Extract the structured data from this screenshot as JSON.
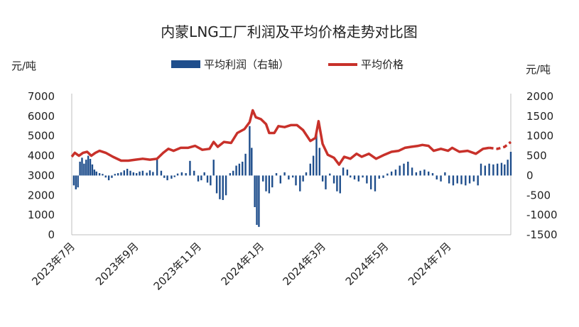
{
  "chart_data": {
    "type": "bar+line",
    "title": "内蒙LNG工厂利润及平均价格走势对比图",
    "left_axis": {
      "unit": "元/吨",
      "ylim": [
        0,
        7000
      ],
      "ticks": [
        0,
        1000,
        2000,
        3000,
        4000,
        5000,
        6000,
        7000
      ]
    },
    "right_axis": {
      "unit": "元/吨",
      "ylim": [
        -1500,
        2000
      ],
      "ticks": [
        -1500,
        -1000,
        -500,
        0,
        500,
        1000,
        1500,
        2000
      ]
    },
    "x_ticks": [
      "2023年7月",
      "2023年9月",
      "2023年11月",
      "2024年1月",
      "2024年3月",
      "2024年5月",
      "2024年7月"
    ],
    "x_tick_dates": [
      "2023-07-01",
      "2023-09-01",
      "2023-11-01",
      "2024-01-01",
      "2024-03-01",
      "2024-05-01",
      "2024-07-01"
    ],
    "x_range": [
      "2023-07-01",
      "2024-08-31"
    ],
    "legend": {
      "position": "top",
      "bar_label": "平均利润（右轴）",
      "line_label": "平均价格"
    },
    "colors": {
      "bar": "#1f4e8c",
      "line": "#c8312a",
      "axis": "#bfbfbf"
    },
    "price_series": {
      "name": "平均价格",
      "axis": "left",
      "points": [
        [
          "2023-07-01",
          3950
        ],
        [
          "2023-07-04",
          4150
        ],
        [
          "2023-07-08",
          4000
        ],
        [
          "2023-07-12",
          4150
        ],
        [
          "2023-07-16",
          4200
        ],
        [
          "2023-07-20",
          4000
        ],
        [
          "2023-07-24",
          4150
        ],
        [
          "2023-07-28",
          4250
        ],
        [
          "2023-08-03",
          4150
        ],
        [
          "2023-08-10",
          3950
        ],
        [
          "2023-08-18",
          3750
        ],
        [
          "2023-08-25",
          3750
        ],
        [
          "2023-09-01",
          3800
        ],
        [
          "2023-09-08",
          3850
        ],
        [
          "2023-09-15",
          3800
        ],
        [
          "2023-09-22",
          3850
        ],
        [
          "2023-09-28",
          4150
        ],
        [
          "2023-10-03",
          4350
        ],
        [
          "2023-10-08",
          4250
        ],
        [
          "2023-10-15",
          4400
        ],
        [
          "2023-10-22",
          4400
        ],
        [
          "2023-10-29",
          4500
        ],
        [
          "2023-11-05",
          4300
        ],
        [
          "2023-11-12",
          4350
        ],
        [
          "2023-11-16",
          4700
        ],
        [
          "2023-11-20",
          4450
        ],
        [
          "2023-11-26",
          4700
        ],
        [
          "2023-12-03",
          4650
        ],
        [
          "2023-12-09",
          5150
        ],
        [
          "2023-12-16",
          5350
        ],
        [
          "2023-12-21",
          5700
        ],
        [
          "2023-12-24",
          6300
        ],
        [
          "2023-12-27",
          5950
        ],
        [
          "2024-01-01",
          5850
        ],
        [
          "2024-01-06",
          5600
        ],
        [
          "2024-01-09",
          5150
        ],
        [
          "2024-01-14",
          5150
        ],
        [
          "2024-01-18",
          5500
        ],
        [
          "2024-01-24",
          5450
        ],
        [
          "2024-01-30",
          5550
        ],
        [
          "2024-02-05",
          5550
        ],
        [
          "2024-02-11",
          5300
        ],
        [
          "2024-02-18",
          4750
        ],
        [
          "2024-02-23",
          4900
        ],
        [
          "2024-02-26",
          5750
        ],
        [
          "2024-03-01",
          4600
        ],
        [
          "2024-03-06",
          4050
        ],
        [
          "2024-03-12",
          3900
        ],
        [
          "2024-03-17",
          3550
        ],
        [
          "2024-03-22",
          3950
        ],
        [
          "2024-03-28",
          3850
        ],
        [
          "2024-04-03",
          4100
        ],
        [
          "2024-04-08",
          3950
        ],
        [
          "2024-04-15",
          4100
        ],
        [
          "2024-04-22",
          3850
        ],
        [
          "2024-04-30",
          4050
        ],
        [
          "2024-05-07",
          4200
        ],
        [
          "2024-05-14",
          4250
        ],
        [
          "2024-05-20",
          4400
        ],
        [
          "2024-05-26",
          4450
        ],
        [
          "2024-06-02",
          4500
        ],
        [
          "2024-06-06",
          4550
        ],
        [
          "2024-06-12",
          4500
        ],
        [
          "2024-06-17",
          4250
        ],
        [
          "2024-06-24",
          4350
        ],
        [
          "2024-07-01",
          4250
        ],
        [
          "2024-07-05",
          4400
        ],
        [
          "2024-07-12",
          4200
        ],
        [
          "2024-07-20",
          4250
        ],
        [
          "2024-07-28",
          4100
        ],
        [
          "2024-08-04",
          4350
        ],
        [
          "2024-08-10",
          4400
        ],
        [
          "2024-08-16",
          4350
        ],
        [
          "2024-08-23",
          4400
        ],
        [
          "2024-08-29",
          4350
        ]
      ],
      "dashed_from": "2024-08-10",
      "dashed_points": [
        [
          "2024-08-10",
          4400
        ],
        [
          "2024-08-18",
          4350
        ],
        [
          "2024-08-25",
          4450
        ],
        [
          "2024-08-31",
          4700
        ]
      ]
    },
    "profit_series": {
      "name": "平均利润",
      "axis": "right",
      "points": [
        [
          "2023-07-03",
          -250
        ],
        [
          "2023-07-05",
          -350
        ],
        [
          "2023-07-07",
          -300
        ],
        [
          "2023-07-09",
          350
        ],
        [
          "2023-07-11",
          450
        ],
        [
          "2023-07-13",
          300
        ],
        [
          "2023-07-15",
          400
        ],
        [
          "2023-07-17",
          500
        ],
        [
          "2023-07-19",
          420
        ],
        [
          "2023-07-21",
          280
        ],
        [
          "2023-07-23",
          150
        ],
        [
          "2023-07-25",
          100
        ],
        [
          "2023-07-28",
          60
        ],
        [
          "2023-07-31",
          40
        ],
        [
          "2023-08-03",
          -50
        ],
        [
          "2023-08-06",
          -120
        ],
        [
          "2023-08-09",
          -60
        ],
        [
          "2023-08-12",
          40
        ],
        [
          "2023-08-15",
          60
        ],
        [
          "2023-08-18",
          80
        ],
        [
          "2023-08-21",
          130
        ],
        [
          "2023-08-24",
          170
        ],
        [
          "2023-08-27",
          120
        ],
        [
          "2023-08-30",
          80
        ],
        [
          "2023-09-02",
          60
        ],
        [
          "2023-09-05",
          100
        ],
        [
          "2023-09-08",
          120
        ],
        [
          "2023-09-12",
          70
        ],
        [
          "2023-09-15",
          130
        ],
        [
          "2023-09-18",
          90
        ],
        [
          "2023-09-22",
          410
        ],
        [
          "2023-09-26",
          120
        ],
        [
          "2023-09-29",
          -60
        ],
        [
          "2023-10-02",
          -120
        ],
        [
          "2023-10-06",
          -80
        ],
        [
          "2023-10-09",
          -40
        ],
        [
          "2023-10-12",
          50
        ],
        [
          "2023-10-16",
          80
        ],
        [
          "2023-10-20",
          60
        ],
        [
          "2023-10-24",
          370
        ],
        [
          "2023-10-28",
          120
        ],
        [
          "2023-11-01",
          -150
        ],
        [
          "2023-11-04",
          -120
        ],
        [
          "2023-11-07",
          80
        ],
        [
          "2023-11-10",
          -180
        ],
        [
          "2023-11-13",
          -250
        ],
        [
          "2023-11-16",
          400
        ],
        [
          "2023-11-19",
          -450
        ],
        [
          "2023-11-22",
          -600
        ],
        [
          "2023-11-25",
          -620
        ],
        [
          "2023-11-28",
          -500
        ],
        [
          "2023-12-02",
          60
        ],
        [
          "2023-12-05",
          120
        ],
        [
          "2023-12-08",
          250
        ],
        [
          "2023-12-11",
          300
        ],
        [
          "2023-12-14",
          350
        ],
        [
          "2023-12-17",
          550
        ],
        [
          "2023-12-21",
          1250
        ],
        [
          "2023-12-23",
          700
        ],
        [
          "2023-12-26",
          -800
        ],
        [
          "2023-12-28",
          -1250
        ],
        [
          "2023-12-30",
          -1300
        ],
        [
          "2024-01-03",
          -150
        ],
        [
          "2024-01-06",
          -400
        ],
        [
          "2024-01-09",
          -450
        ],
        [
          "2024-01-12",
          -300
        ],
        [
          "2024-01-16",
          60
        ],
        [
          "2024-01-20",
          -200
        ],
        [
          "2024-01-24",
          80
        ],
        [
          "2024-01-28",
          -100
        ],
        [
          "2024-02-01",
          -50
        ],
        [
          "2024-02-04",
          -250
        ],
        [
          "2024-02-08",
          -400
        ],
        [
          "2024-02-11",
          -150
        ],
        [
          "2024-02-14",
          80
        ],
        [
          "2024-02-18",
          300
        ],
        [
          "2024-02-21",
          500
        ],
        [
          "2024-02-24",
          1050
        ],
        [
          "2024-02-27",
          700
        ],
        [
          "2024-03-01",
          -150
        ],
        [
          "2024-03-04",
          -350
        ],
        [
          "2024-03-08",
          50
        ],
        [
          "2024-03-12",
          -200
        ],
        [
          "2024-03-15",
          -400
        ],
        [
          "2024-03-18",
          -450
        ],
        [
          "2024-03-21",
          200
        ],
        [
          "2024-03-25",
          150
        ],
        [
          "2024-03-28",
          -50
        ],
        [
          "2024-04-01",
          -100
        ],
        [
          "2024-04-05",
          -150
        ],
        [
          "2024-04-09",
          -50
        ],
        [
          "2024-04-13",
          -200
        ],
        [
          "2024-04-17",
          -350
        ],
        [
          "2024-04-21",
          -400
        ],
        [
          "2024-04-25",
          -80
        ],
        [
          "2024-04-29",
          -60
        ],
        [
          "2024-05-03",
          50
        ],
        [
          "2024-05-07",
          100
        ],
        [
          "2024-05-11",
          150
        ],
        [
          "2024-05-15",
          250
        ],
        [
          "2024-05-19",
          300
        ],
        [
          "2024-05-23",
          350
        ],
        [
          "2024-05-27",
          200
        ],
        [
          "2024-05-31",
          80
        ],
        [
          "2024-06-04",
          120
        ],
        [
          "2024-06-08",
          150
        ],
        [
          "2024-06-12",
          100
        ],
        [
          "2024-06-16",
          60
        ],
        [
          "2024-06-20",
          -100
        ],
        [
          "2024-06-24",
          -150
        ],
        [
          "2024-06-28",
          80
        ],
        [
          "2024-07-02",
          -200
        ],
        [
          "2024-07-06",
          -250
        ],
        [
          "2024-07-10",
          -200
        ],
        [
          "2024-07-14",
          -220
        ],
        [
          "2024-07-18",
          -250
        ],
        [
          "2024-07-22",
          -200
        ],
        [
          "2024-07-26",
          -150
        ],
        [
          "2024-07-30",
          -250
        ],
        [
          "2024-08-02",
          300
        ],
        [
          "2024-08-06",
          250
        ],
        [
          "2024-08-10",
          300
        ],
        [
          "2024-08-14",
          280
        ],
        [
          "2024-08-18",
          300
        ],
        [
          "2024-08-22",
          320
        ],
        [
          "2024-08-25",
          280
        ],
        [
          "2024-08-28",
          400
        ],
        [
          "2024-08-31",
          600
        ]
      ]
    }
  }
}
